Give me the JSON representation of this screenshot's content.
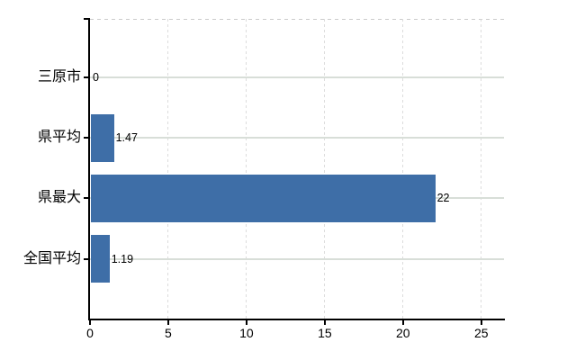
{
  "chart_data": {
    "type": "bar",
    "orientation": "horizontal",
    "title": "",
    "xlabel": "",
    "ylabel": "",
    "categories": [
      "三原市",
      "県平均",
      "県最大",
      "全国平均"
    ],
    "values": [
      0,
      1.47,
      22,
      1.19
    ],
    "value_labels": [
      "0",
      "1.47",
      "22",
      "1.19"
    ],
    "xticks": [
      0,
      5,
      10,
      15,
      20,
      25
    ],
    "xtick_labels": [
      "0",
      "5",
      "10",
      "15",
      "20",
      "25"
    ],
    "xlim": [
      0,
      26.45
    ],
    "grid": "on",
    "legend": "none",
    "colors": {
      "bar": "#3e6ea7",
      "hgrid": "#d8ded8",
      "vgrid": "#dcdcdc",
      "top_border": "#cccccc",
      "axis": "#000000",
      "text": "#000000",
      "background": "#ffffff"
    }
  }
}
